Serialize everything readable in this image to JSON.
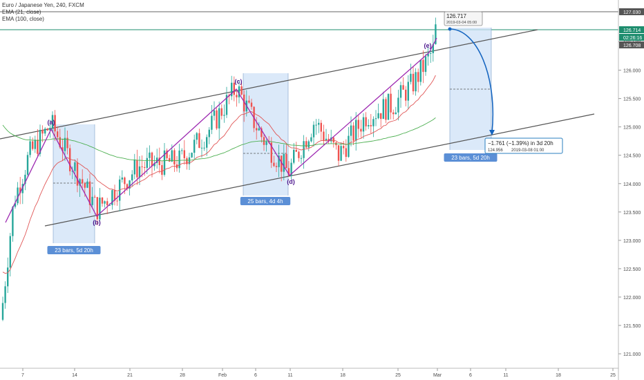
{
  "header": {
    "symbol": "Euro / Japanese Yen, 240, FXCM",
    "indicators": [
      "EMA (21, close)",
      "EMA (100, close)"
    ]
  },
  "price_axis": {
    "labels": [
      "127.030",
      "126.500",
      "126.000",
      "125.500",
      "125.000",
      "124.500",
      "124.000",
      "123.500",
      "123.000",
      "122.500",
      "122.000",
      "121.500",
      "121.000"
    ],
    "tags": [
      {
        "value": "127.030",
        "bg": "#555555"
      },
      {
        "value": "126.714",
        "bg": "#1e8d6e"
      },
      {
        "value": "02:26:16",
        "bg": "#1e8d6e"
      },
      {
        "value": "126.708",
        "bg": "#555555"
      }
    ]
  },
  "time_axis": {
    "labels": [
      "7",
      "14",
      "21",
      "28",
      "Feb",
      "6",
      "11",
      "18",
      "25",
      "Mar",
      "6",
      "11",
      "18",
      "25"
    ]
  },
  "annotations": {
    "wave_labels": [
      "(a)",
      "(b)",
      "(c)",
      "(d)",
      "(e)"
    ],
    "bar_ranges": [
      "23 bars, 5d 20h",
      "25 bars, 4d 4h",
      "23 bars, 5d 20h"
    ],
    "crosshair_price": "126.717",
    "crosshair_time": "2019-03-04 05:00",
    "projection_text": "−1.761 (−1.39%) in 3d 20h",
    "projection_price": "124.956",
    "projection_time": "2019-03-08  01:00"
  },
  "colors": {
    "up": "#26a69a",
    "down": "#ef5350",
    "ema21": "#e05555",
    "ema100": "#4caf50",
    "wave": "#9c27b0",
    "channel": "#555555",
    "range_fill": "#cfe2f7",
    "label_bg": "#5b8fd6",
    "arrow": "#1565c0"
  },
  "chart_data": {
    "type": "candlestick",
    "title": "Euro / Japanese Yen, 240, FXCM",
    "ylim": [
      121.0,
      127.2
    ],
    "xlim": [
      "2019-01-03",
      "2019-03-25"
    ],
    "key_points": [
      {
        "label": "(a)",
        "date": "2019-01-10",
        "price": 125.05
      },
      {
        "label": "(b)",
        "date": "2019-01-16",
        "price": 123.55
      },
      {
        "label": "(c)",
        "date": "2019-02-04",
        "price": 125.7
      },
      {
        "label": "(d)",
        "date": "2019-02-10",
        "price": 124.2
      },
      {
        "label": "(e)",
        "date": "2019-02-28",
        "price": 126.35
      }
    ],
    "last_price": 126.714,
    "projection": {
      "from": 126.717,
      "to": 124.956,
      "change": -1.761,
      "pct": -1.39
    }
  }
}
